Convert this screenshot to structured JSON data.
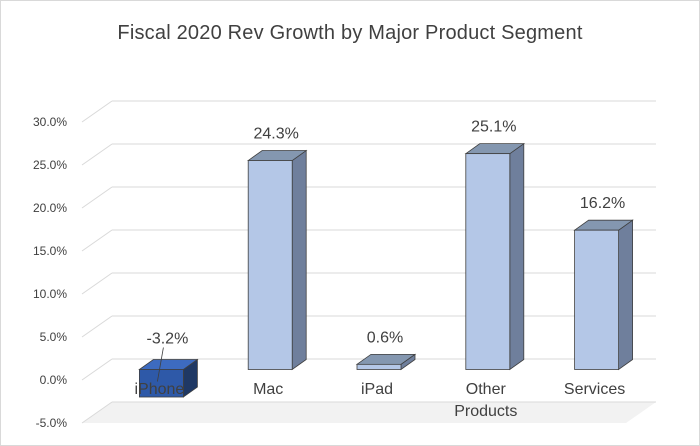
{
  "chart_data": {
    "type": "bar",
    "style": "3d-column",
    "title": "Fiscal 2020 Rev Growth by Major Product Segment",
    "categories": [
      "iPhone",
      "Mac",
      "iPad",
      "Other Products",
      "Services"
    ],
    "category_lines": [
      [
        "iPhone"
      ],
      [
        "Mac"
      ],
      [
        "iPad"
      ],
      [
        "Other",
        "Products"
      ],
      [
        "Services"
      ]
    ],
    "values": [
      -3.2,
      24.3,
      0.6,
      25.1,
      16.2
    ],
    "data_labels": [
      "-3.2%",
      "24.3%",
      "0.6%",
      "25.1%",
      "16.2%"
    ],
    "y_ticks": [
      -5,
      0,
      5,
      10,
      15,
      20,
      25,
      30
    ],
    "y_tick_labels": [
      "-5.0%",
      "0.0%",
      "5.0%",
      "10.0%",
      "15.0%",
      "20.0%",
      "25.0%",
      "30.0%"
    ],
    "ylim": [
      -5,
      30
    ],
    "xlabel": "",
    "ylabel": "",
    "grid": true,
    "legend": "none",
    "colors": {
      "positive_front": "#b4c7e7",
      "positive_side": "#6f7f9c",
      "positive_top": "#8497b0",
      "negative_front": "#2e59a8",
      "negative_side": "#1f3864",
      "negative_top": "#3d6bc0",
      "edge": "#404040",
      "grid": "#d9d9d9",
      "floor": "#f2f2f2"
    }
  }
}
